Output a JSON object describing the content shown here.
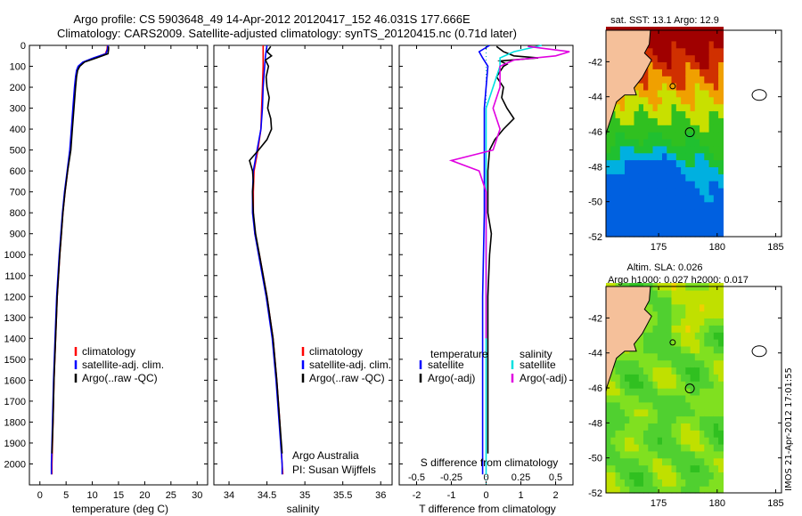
{
  "header": {
    "title_line1": "Argo profile: CS 5903648_49 14-Apr-2012 20120417_152 46.031S 177.666E",
    "title_line2": "Climatology: CARS2009. Satellite-adjusted climatology: synTS_20120415.nc (0.71d later)"
  },
  "chart_data": [
    {
      "type": "line",
      "id": "temperature",
      "xlabel": "temperature (deg C)",
      "ylabel": "",
      "xlim": [
        -2,
        32
      ],
      "ylim": [
        2100,
        0
      ],
      "x_ticks": [
        0,
        5,
        10,
        15,
        20,
        25,
        30
      ],
      "y_ticks": [
        0,
        100,
        200,
        300,
        400,
        500,
        600,
        700,
        800,
        900,
        1000,
        1100,
        1200,
        1300,
        1400,
        1500,
        1600,
        1700,
        1800,
        1900,
        2000
      ],
      "legend": [
        "climatology",
        "satellite-adj. clim.",
        "Argo(..raw -QC)"
      ],
      "series": [
        {
          "name": "climatology",
          "color": "#ff0000",
          "depth": [
            0,
            20,
            40,
            60,
            80,
            100,
            120,
            150,
            200,
            300,
            400,
            500,
            600,
            700,
            800,
            900,
            1000,
            1200,
            1400,
            1600,
            1800,
            2000,
            2050
          ],
          "values": [
            12.9,
            12.8,
            12.5,
            10.5,
            8.4,
            7.5,
            7.1,
            6.9,
            6.7,
            6.4,
            6.1,
            5.8,
            5.3,
            4.8,
            4.4,
            4.1,
            3.8,
            3.3,
            3.0,
            2.7,
            2.5,
            2.3,
            2.3
          ]
        },
        {
          "name": "satellite-adj. clim.",
          "color": "#0000ff",
          "depth": [
            0,
            20,
            40,
            60,
            80,
            100,
            120,
            150,
            200,
            300,
            400,
            500,
            600,
            700,
            800,
            900,
            1000,
            1200,
            1400,
            1600,
            1800,
            2000,
            2050
          ],
          "values": [
            13.0,
            12.9,
            12.6,
            10.2,
            8.2,
            7.3,
            7.0,
            6.8,
            6.6,
            6.3,
            6.0,
            5.7,
            5.2,
            4.7,
            4.3,
            4.0,
            3.7,
            3.2,
            2.9,
            2.6,
            2.4,
            2.2,
            2.2
          ]
        },
        {
          "name": "Argo(..raw -QC)",
          "color": "#000000",
          "depth": [
            5,
            20,
            40,
            60,
            80,
            100,
            120,
            150,
            200,
            300,
            400,
            500,
            600,
            700,
            800,
            900,
            1000,
            1200,
            1400,
            1600,
            1800,
            1950
          ],
          "values": [
            13.1,
            13.1,
            13.0,
            10.8,
            8.5,
            7.6,
            7.2,
            7.0,
            6.8,
            6.5,
            6.2,
            5.9,
            5.3,
            4.8,
            4.4,
            4.1,
            3.8,
            3.3,
            3.0,
            2.7,
            2.5,
            2.3
          ]
        }
      ]
    },
    {
      "type": "line",
      "id": "salinity",
      "xlabel": "salinity",
      "ylabel": "",
      "xlim": [
        33.8,
        36.15
      ],
      "ylim": [
        2100,
        0
      ],
      "x_ticks": [
        34,
        34.5,
        35,
        35.5,
        36
      ],
      "legend": [
        "climatology",
        "satellite-adj. clim.",
        "Argo(..raw -QC)"
      ],
      "series": [
        {
          "name": "climatology",
          "color": "#ff0000",
          "depth": [
            0,
            50,
            100,
            200,
            300,
            400,
            500,
            600,
            700,
            800,
            900,
            1000,
            1200,
            1400,
            1600,
            1800,
            2000,
            2050
          ],
          "values": [
            34.45,
            34.45,
            34.45,
            34.44,
            34.43,
            34.42,
            34.38,
            34.33,
            34.32,
            34.32,
            34.34,
            34.4,
            34.5,
            34.58,
            34.63,
            34.67,
            34.7,
            34.71
          ]
        },
        {
          "name": "satellite-adj. clim.",
          "color": "#0000ff",
          "depth": [
            0,
            50,
            100,
            200,
            300,
            400,
            500,
            600,
            700,
            800,
            900,
            1000,
            1200,
            1400,
            1600,
            1800,
            2000,
            2050
          ],
          "values": [
            34.5,
            34.48,
            34.47,
            34.45,
            34.44,
            34.42,
            34.37,
            34.32,
            34.31,
            34.31,
            34.34,
            34.39,
            34.49,
            34.57,
            34.62,
            34.66,
            34.7,
            34.7
          ]
        },
        {
          "name": "Argo(..raw -QC)",
          "color": "#000000",
          "depth": [
            5,
            30,
            50,
            70,
            100,
            150,
            200,
            250,
            300,
            350,
            400,
            450,
            500,
            550,
            600,
            650,
            700,
            800,
            900,
            1000,
            1200,
            1400,
            1600,
            1800,
            1950
          ],
          "values": [
            34.55,
            34.5,
            34.56,
            34.48,
            34.52,
            34.49,
            34.5,
            34.53,
            34.51,
            34.55,
            34.56,
            34.5,
            34.39,
            34.27,
            34.31,
            34.32,
            34.31,
            34.32,
            34.35,
            34.4,
            34.5,
            34.58,
            34.63,
            34.67,
            34.7
          ]
        }
      ]
    },
    {
      "type": "line",
      "id": "differences",
      "xlabel": "T difference from climatology",
      "xlabel_top": "S difference from climatology",
      "xlim": [
        -2.5,
        2.5
      ],
      "ylim": [
        2100,
        0
      ],
      "x_ticks": [
        -2,
        -1,
        0,
        1,
        2
      ],
      "x_ticks_s": [
        -0.5,
        -0.25,
        0,
        0.25,
        0.5
      ],
      "legend_t_title": "temperature",
      "legend_s_title": "salinity",
      "legend": [
        "satellite",
        "Argo(-adj)",
        "satellite",
        "Argo(-adj)"
      ],
      "series": [
        {
          "name": "satellite",
          "color": "#0000ff",
          "depth": [
            0,
            30,
            60,
            100,
            200,
            300,
            500,
            800,
            1200,
            1600,
            2000,
            2050
          ],
          "values": [
            0.1,
            -0.2,
            -0.1,
            0.05,
            0.0,
            -0.05,
            -0.05,
            -0.05,
            -0.1,
            -0.1,
            -0.1,
            -0.1
          ]
        },
        {
          "name": "Argo(-adj)",
          "color": "#000000",
          "depth": [
            5,
            30,
            50,
            60,
            75,
            90,
            100,
            150,
            200,
            250,
            300,
            350,
            400,
            450,
            500,
            600,
            700,
            800,
            900,
            1000,
            1200,
            1400,
            1600,
            1800,
            1950
          ],
          "values": [
            0.3,
            0.5,
            0.8,
            1.5,
            0.4,
            0.6,
            0.5,
            0.3,
            0.5,
            0.45,
            0.6,
            0.8,
            0.5,
            0.25,
            0.1,
            0.05,
            0.05,
            0.05,
            0.15,
            0.1,
            0.05,
            0.05,
            0.05,
            0.05,
            0.05
          ]
        },
        {
          "name": "satellite",
          "color": "#00e0e0",
          "depth": [
            0,
            30,
            60,
            100,
            200,
            300,
            500,
            800,
            1200,
            1600,
            2000,
            2050
          ],
          "values": [
            0.4,
            0.2,
            0.1,
            0.1,
            0.05,
            0.0,
            0.0,
            0.0,
            0.0,
            0.0,
            0.0,
            0.0
          ]
        },
        {
          "name": "Argo(-adj)",
          "color": "#e000e0",
          "depth": [
            5,
            30,
            50,
            70,
            100,
            150,
            200,
            300,
            400,
            500,
            550,
            600,
            700,
            800,
            1000,
            1200,
            1400
          ],
          "values": [
            0.3,
            0.6,
            0.5,
            0.2,
            0.1,
            0.1,
            0.1,
            0.05,
            0.1,
            0.05,
            -0.25,
            -0.05,
            0.0,
            0.0,
            0.0,
            0.0,
            0.0
          ]
        }
      ]
    },
    {
      "type": "heatmap",
      "id": "sst-map",
      "title": "sat. SST: 13.1 Argo: 12.9",
      "xlim": [
        170.5,
        185.5
      ],
      "ylim": [
        -52,
        -40.2
      ],
      "x_ticks": [
        175,
        180,
        185
      ],
      "y_ticks": [
        -42,
        -44,
        -46,
        -48,
        -50,
        -52
      ],
      "argo_position": {
        "lon": 177.666,
        "lat": -46.031
      }
    },
    {
      "type": "heatmap",
      "id": "sla-map",
      "title_line1": "Altim. SLA: 0.026",
      "title_line2": "Argo h1000: 0.027 h2000: 0.017",
      "xlim": [
        170.5,
        185.5
      ],
      "ylim": [
        -52,
        -40.2
      ],
      "x_ticks": [
        175,
        180,
        185
      ],
      "y_ticks": [
        -42,
        -44,
        -46,
        -48,
        -50,
        -52
      ],
      "argo_position": {
        "lon": 177.666,
        "lat": -46.031
      }
    }
  ],
  "annotations": {
    "argo_australia": "Argo Australia",
    "pi": "PI: Susan Wijffels",
    "stamp": "IMOS 21-Apr-2012 17:01:55"
  }
}
